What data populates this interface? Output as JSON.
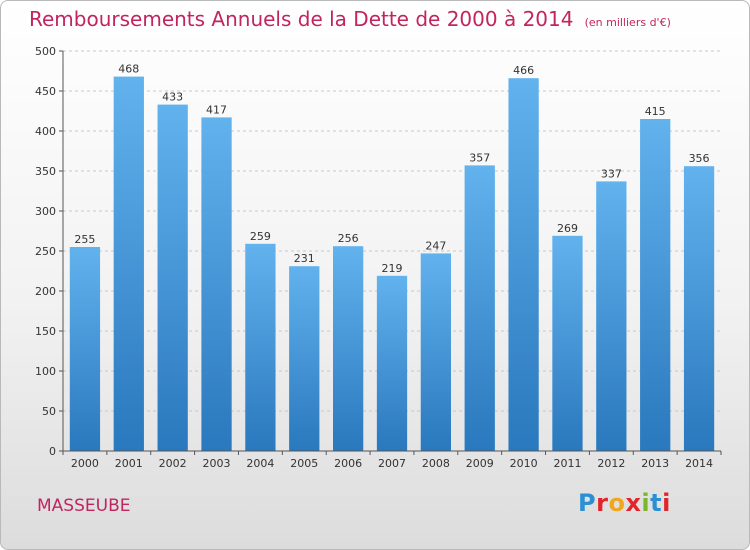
{
  "chart_data": {
    "type": "bar",
    "title": "Remboursements Annuels de la Dette de 2000 à 2014",
    "subtitle": "(en milliers d'€)",
    "categories": [
      "2000",
      "2001",
      "2002",
      "2003",
      "2004",
      "2005",
      "2006",
      "2007",
      "2008",
      "2009",
      "2010",
      "2011",
      "2012",
      "2013",
      "2014"
    ],
    "values": [
      255,
      468,
      433,
      417,
      259,
      231,
      256,
      219,
      247,
      357,
      466,
      269,
      337,
      415,
      356
    ],
    "ylim": [
      0,
      500
    ],
    "yticks": [
      0,
      50,
      100,
      150,
      200,
      250,
      300,
      350,
      400,
      450,
      500
    ],
    "grid": true,
    "bar_color": "#3d92d6"
  },
  "place_name": "MASSEUBE",
  "brand": {
    "icon": "proxiti-logo",
    "colors": [
      "#2b8fd3",
      "#e0252b",
      "#f2a71b",
      "#7bb72d"
    ]
  }
}
